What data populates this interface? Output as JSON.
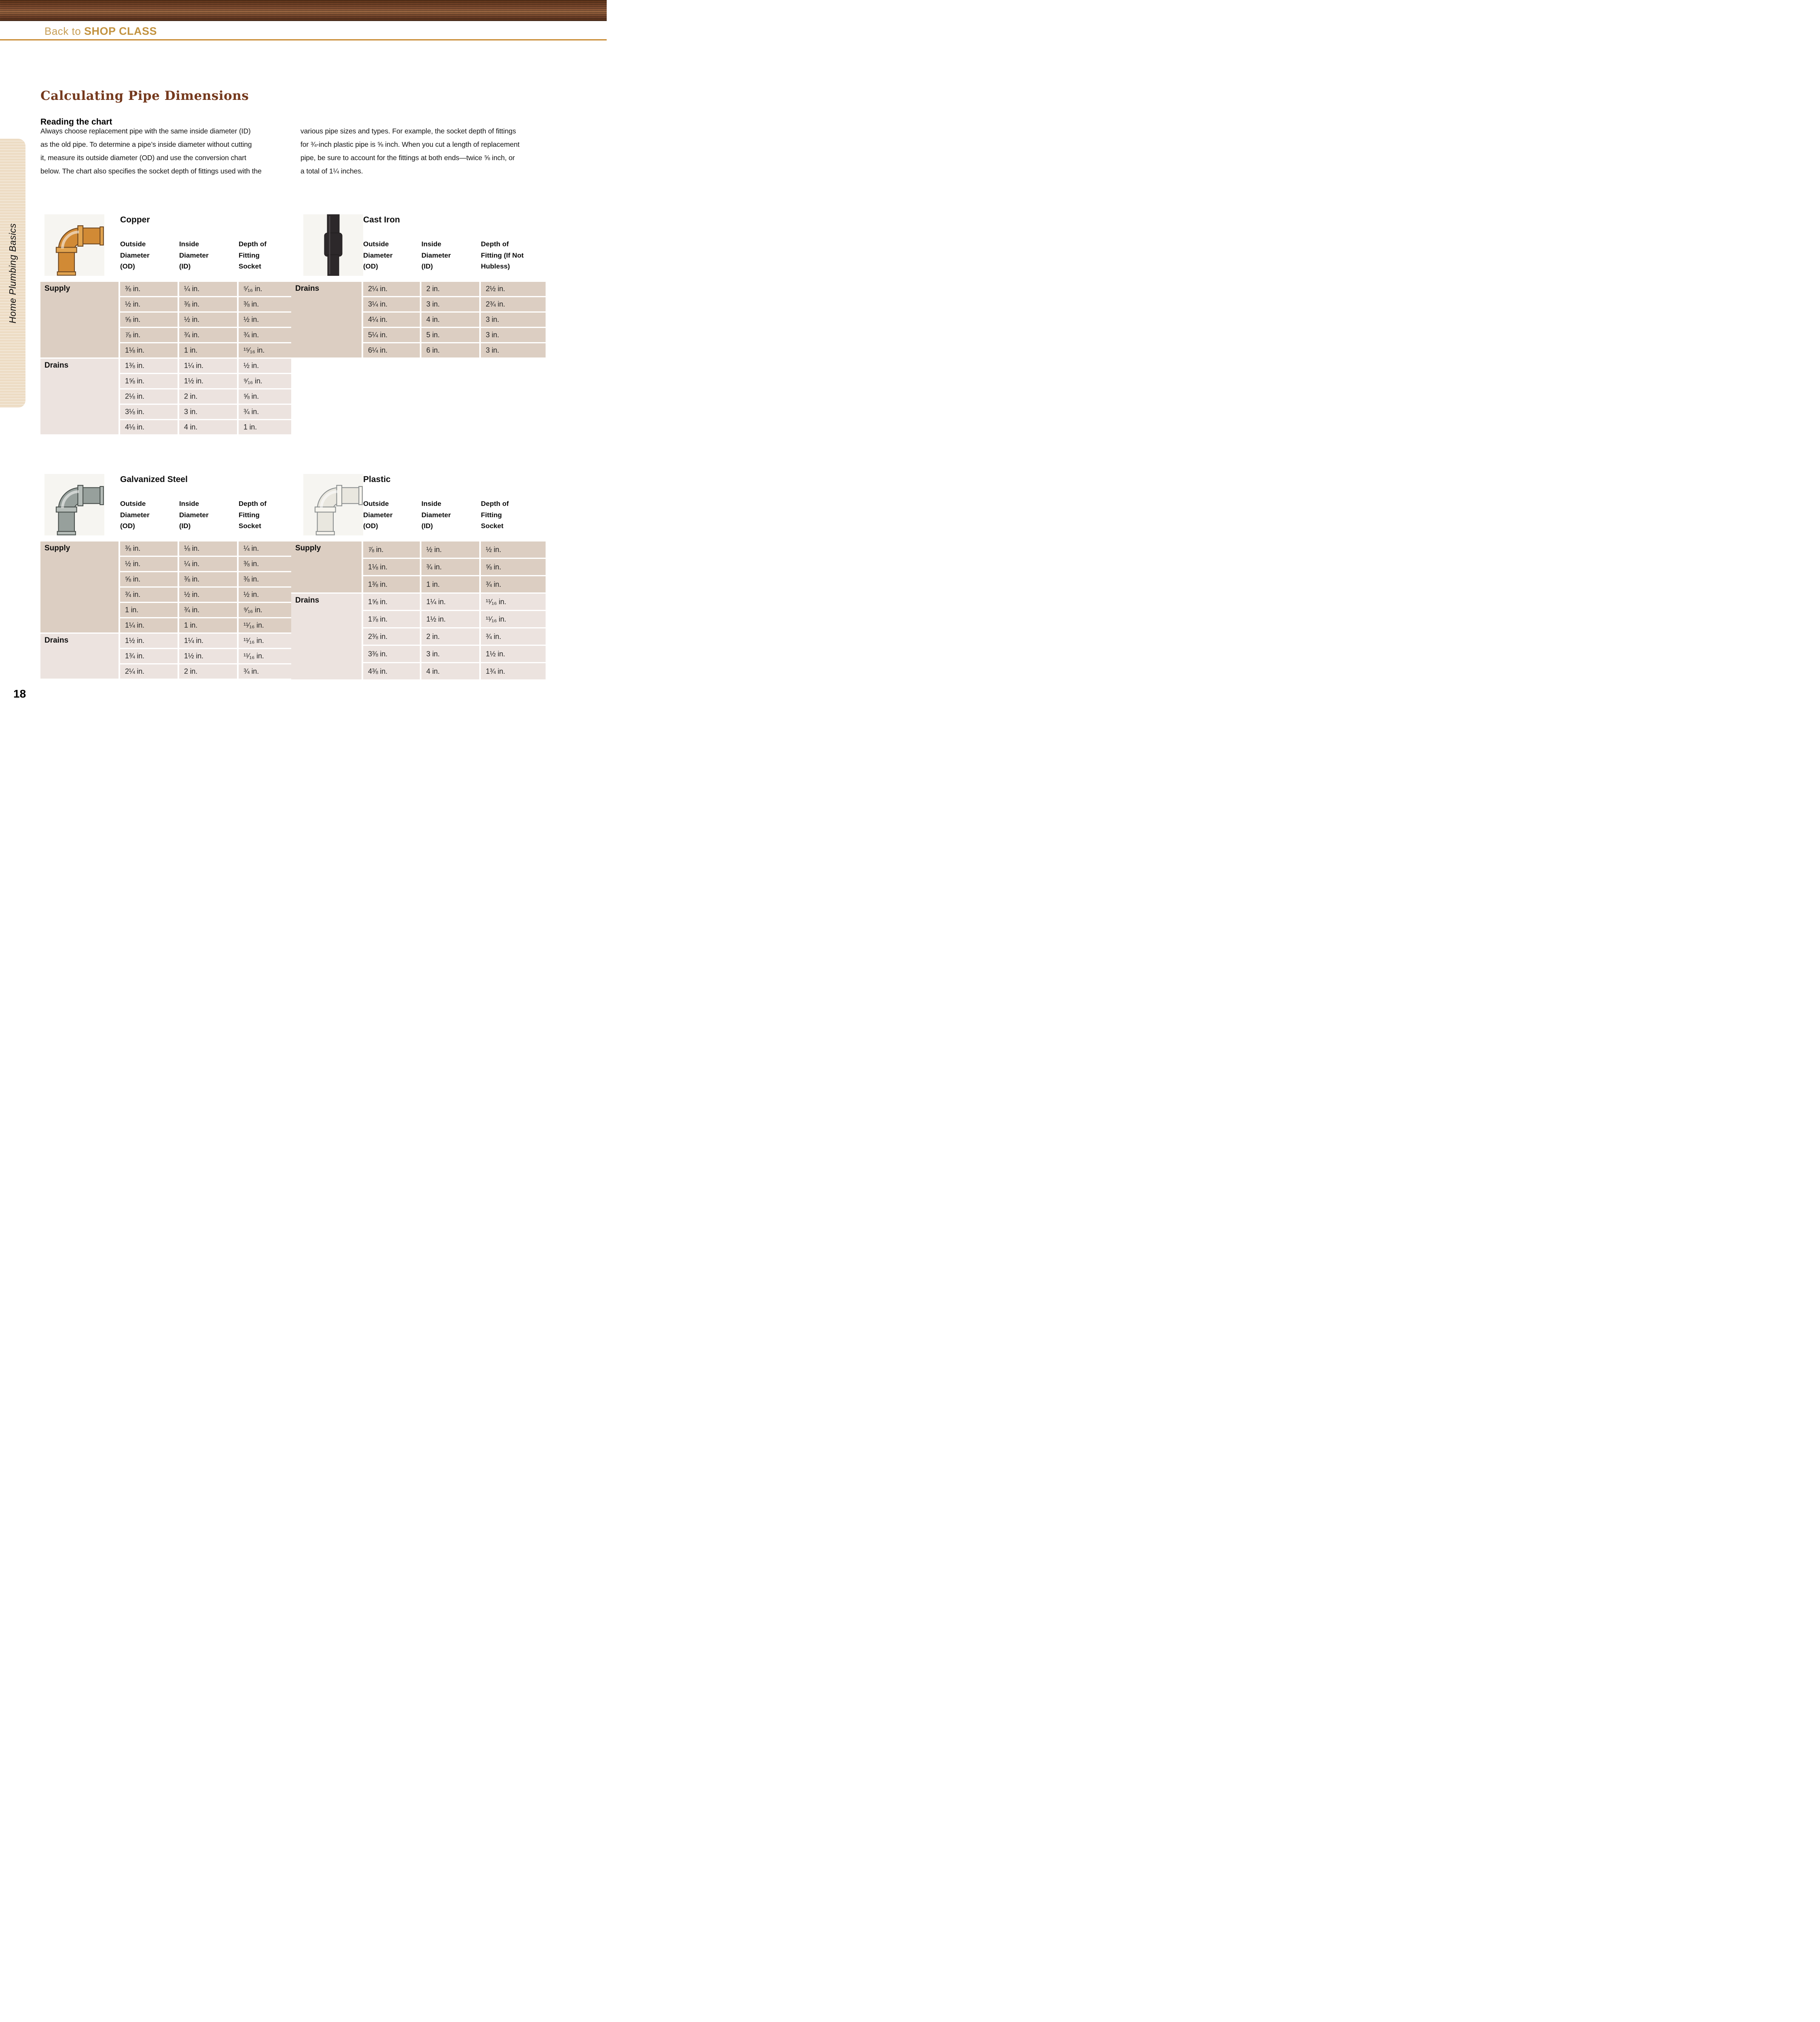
{
  "header": {
    "back_light": "Back to ",
    "back_bold": "SHOP CLASS"
  },
  "article": {
    "title": "Calculating Pipe Dimensions",
    "subtitle": "Reading the chart",
    "intro_left": "Always choose replacement pipe with the same inside diameter (ID)\nas the old pipe. To determine a pipe’s inside diameter without cutting\nit, measure its outside diameter (OD) and use the conversion chart\nbelow. The chart also specifies the socket depth of fittings used with the",
    "intro_right": "various pipe sizes and types. For example, the socket depth of fittings\nfor ¾-inch plastic pipe is ⅝ inch. When you cut a length of replacement\npipe, be sure to account for the fittings at both ends—twice ⅝ inch, or\na total of 1¼ inches."
  },
  "sidebar": {
    "label": "Home Plumbing Basics"
  },
  "footer": {
    "page_number": "18"
  },
  "colors": {
    "accent_gold": "#c8872e",
    "title_brown": "#75391d",
    "banner_wood": "#6f3d24",
    "cell_dark": "#dccec2",
    "cell_light": "#ece3df",
    "sidebar_cream": "#eddcc4",
    "copper_pipe": "#d18a35",
    "galvanized_pipe": "#97a09c",
    "plastic_pipe": "#e9e7df",
    "cast_iron_pipe": "#2c282a"
  },
  "tables": [
    {
      "id": "copper",
      "title": "Copper",
      "icon": "copper-elbow-fitting-illustration",
      "columns": [
        "Outside\nDiameter\n(OD)",
        "Inside\nDiameter\n(ID)",
        "Depth of\nFitting\nSocket"
      ],
      "sections": [
        {
          "label": "Supply",
          "shade": "dark",
          "rows": [
            [
              "⅜ in.",
              "¼ in.",
              "⁵⁄₁₆ in."
            ],
            [
              "½ in.",
              "⅜ in.",
              "⅜ in."
            ],
            [
              "⅝ in.",
              "½ in.",
              "½ in."
            ],
            [
              "⅞ in.",
              "¾ in.",
              "¾ in."
            ],
            [
              "1⅛ in.",
              "1 in.",
              "¹⁵⁄₁₆ in."
            ]
          ]
        },
        {
          "label": "Drains",
          "shade": "light",
          "rows": [
            [
              "1⅜ in.",
              "1¼ in.",
              "½ in."
            ],
            [
              "1⅝ in.",
              "1½ in.",
              "⁹⁄₁₆ in."
            ],
            [
              "2⅛ in.",
              "2 in.",
              "⅝ in."
            ],
            [
              "3⅛ in.",
              "3 in.",
              "¾ in."
            ],
            [
              "4⅛ in.",
              "4 in.",
              "1 in."
            ]
          ]
        }
      ]
    },
    {
      "id": "cast-iron",
      "title": "Cast Iron",
      "icon": "cast-iron-hub-fitting-illustration",
      "columns": [
        "Outside\nDiameter\n(OD)",
        "Inside\nDiameter\n(ID)",
        "Depth of\nFitting (If Not\nHubless)"
      ],
      "sections": [
        {
          "label": "Drains",
          "shade": "dark",
          "rows": [
            [
              "2¼ in.",
              "2 in.",
              "2½ in."
            ],
            [
              "3¼ in.",
              "3 in.",
              "2¾ in."
            ],
            [
              "4¼ in.",
              "4 in.",
              "3 in."
            ],
            [
              "5¼ in.",
              "5 in.",
              "3 in."
            ],
            [
              "6¼ in.",
              "6 in.",
              "3 in."
            ]
          ]
        }
      ]
    },
    {
      "id": "galvanized",
      "title": "Galvanized Steel",
      "icon": "galvanized-elbow-fitting-illustration",
      "columns": [
        "Outside\nDiameter\n(OD)",
        "Inside\nDiameter\n(ID)",
        "Depth of\nFitting\nSocket"
      ],
      "sections": [
        {
          "label": "Supply",
          "shade": "dark",
          "rows": [
            [
              "⅜ in.",
              "⅛ in.",
              "¼ in."
            ],
            [
              "½ in.",
              "¼ in.",
              "⅜ in."
            ],
            [
              "⅝ in.",
              "⅜ in.",
              "⅜ in."
            ],
            [
              "¾ in.",
              "½ in.",
              "½ in."
            ],
            [
              "1 in.",
              "¾ in.",
              "⁹⁄₁₆ in."
            ],
            [
              "1¼ in.",
              "1 in.",
              "¹¹⁄₁₆ in."
            ]
          ]
        },
        {
          "label": "Drains",
          "shade": "light",
          "rows": [
            [
              "1½ in.",
              "1¼ in.",
              "¹¹⁄₁₆ in."
            ],
            [
              "1¾ in.",
              "1½ in.",
              "¹¹⁄₁₆ in."
            ],
            [
              "2¼ in.",
              "2 in.",
              "¾ in."
            ]
          ]
        }
      ]
    },
    {
      "id": "plastic",
      "title": "Plastic",
      "icon": "plastic-elbow-fitting-illustration",
      "columns": [
        "Outside\nDiameter\n(OD)",
        "Inside\nDiameter\n(ID)",
        "Depth of\nFitting\nSocket"
      ],
      "sections": [
        {
          "label": "Supply",
          "shade": "dark",
          "rows": [
            [
              "⅞ in.",
              "½ in.",
              "½ in."
            ],
            [
              "1⅛ in.",
              "¾ in.",
              "⅝ in."
            ],
            [
              "1⅜ in.",
              "1 in.",
              "¾ in."
            ]
          ]
        },
        {
          "label": "Drains",
          "shade": "light",
          "rows": [
            [
              "1⅝ in.",
              "1¼ in.",
              "¹¹⁄₁₆ in."
            ],
            [
              "1⅞ in.",
              "1½ in.",
              "¹¹⁄₁₆ in."
            ],
            [
              "2⅜ in.",
              "2 in.",
              "¾ in."
            ],
            [
              "3⅜ in.",
              "3 in.",
              "1½ in."
            ],
            [
              "4⅜ in.",
              "4 in.",
              "1¾ in."
            ]
          ]
        }
      ]
    }
  ]
}
